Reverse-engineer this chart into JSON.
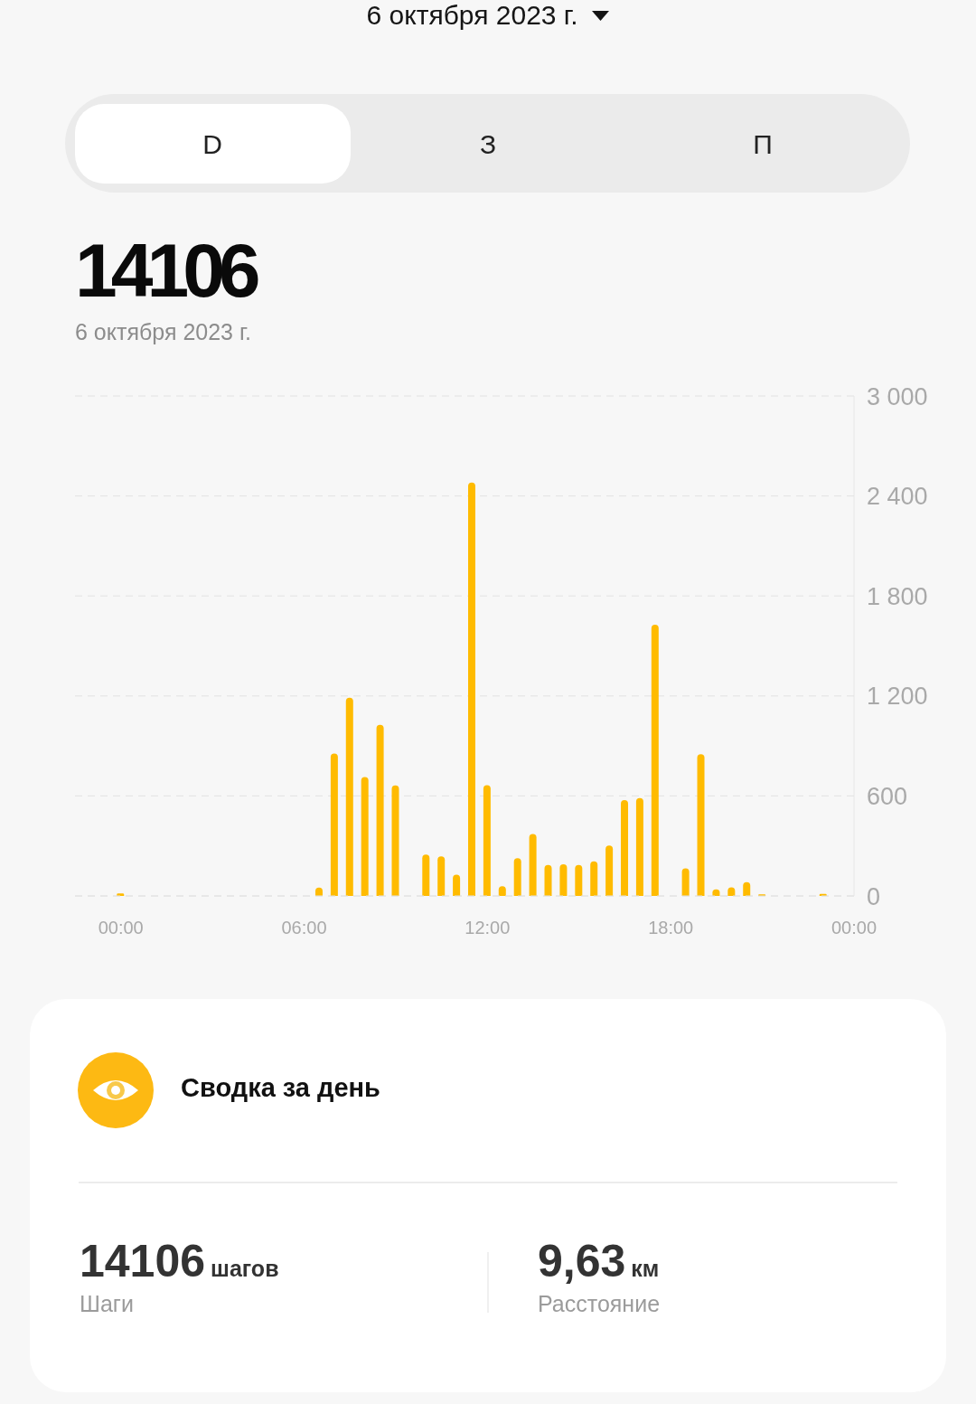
{
  "chart_data": {
    "type": "bar",
    "title": "14106",
    "subtitle": "6 октября 2023 г.",
    "x": [
      0,
      6.5,
      7,
      7.5,
      8,
      8.5,
      9,
      10,
      10.5,
      11,
      11.5,
      12,
      12.5,
      13,
      13.5,
      14,
      14.5,
      15,
      15.5,
      16,
      16.5,
      17,
      17.5,
      18.5,
      19,
      19.5,
      20,
      20.5,
      21,
      23
    ],
    "values": [
      15,
      50,
      855,
      1190,
      714,
      1027,
      663,
      248,
      237,
      127,
      2481,
      665,
      58,
      226,
      372,
      186,
      190,
      186,
      208,
      302,
      575,
      587,
      1628,
      166,
      850,
      40,
      51,
      83,
      10,
      12
    ],
    "color": "#ffbb00",
    "xlim": [
      -1.5,
      24
    ],
    "xticks": [
      {
        "value": 0,
        "label": "00:00"
      },
      {
        "value": 6,
        "label": "06:00"
      },
      {
        "value": 12,
        "label": "12:00"
      },
      {
        "value": 18,
        "label": "18:00"
      },
      {
        "value": 24,
        "label": "00:00"
      }
    ],
    "ylim": [
      0,
      3000
    ],
    "yticks": [
      0,
      600,
      {
        "value": 1200,
        "label": "1 200"
      },
      {
        "value": 1800,
        "label": "1 800"
      },
      {
        "value": 2400,
        "label": "2 400"
      },
      {
        "value": 3000,
        "label": "3 000"
      }
    ],
    "grid": "y",
    "annotations": [
      "6 октября 2023 г.",
      "D",
      "З",
      "П",
      "Сводка за день",
      "14106",
      "шагов",
      "Шаги",
      "9,63",
      "км",
      "Расстояние"
    ]
  }
}
